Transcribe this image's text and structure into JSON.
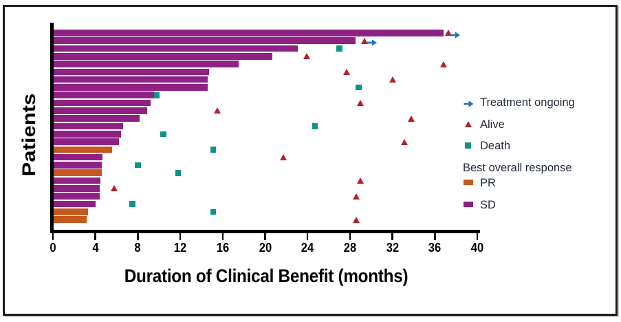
{
  "colors": {
    "sd_bar": "#8F2185",
    "pr_bar": "#C4581E",
    "alive_marker": "#B5202C",
    "death_marker": "#0E948C",
    "ongoing_marker": "#1C75BB",
    "axis": "#000000",
    "legend_text": "#232C38"
  },
  "chart_data": {
    "type": "bar",
    "variant": "swimmer-plot",
    "title": "",
    "xlabel": "Duration of Clinical Benefit (months)",
    "ylabel": "Patients",
    "xlim": [
      0,
      40
    ],
    "xticks": [
      0,
      4,
      8,
      12,
      16,
      20,
      24,
      28,
      32,
      36,
      40
    ],
    "grid": false,
    "legend_position": "right",
    "legend": [
      {
        "id": "ongoing",
        "label": "Treatment ongoing",
        "marker": "arrow-right-icon",
        "color": "#1C75BB"
      },
      {
        "id": "alive",
        "label": "Alive",
        "marker": "triangle-up-icon",
        "color": "#B5202C"
      },
      {
        "id": "death",
        "label": "Death",
        "marker": "square-icon",
        "color": "#0E948C"
      },
      {
        "id": "response-header",
        "label": "Best overall response",
        "marker": "none",
        "color": ""
      },
      {
        "id": "pr",
        "label": "PR",
        "marker": "swatch",
        "color": "#C4581E"
      },
      {
        "id": "sd",
        "label": "SD",
        "marker": "swatch",
        "color": "#8F2185"
      }
    ],
    "patients": [
      {
        "duration": 36.8,
        "response": "SD",
        "events": [
          {
            "type": "alive",
            "x": 37.3
          },
          {
            "type": "ongoing",
            "x": 37.9
          }
        ]
      },
      {
        "duration": 28.5,
        "response": "SD",
        "events": [
          {
            "type": "alive",
            "x": 29.4
          },
          {
            "type": "ongoing",
            "x": 30.1
          }
        ]
      },
      {
        "duration": 23.1,
        "response": "SD",
        "events": [
          {
            "type": "death",
            "x": 27.0
          }
        ]
      },
      {
        "duration": 20.7,
        "response": "SD",
        "events": [
          {
            "type": "alive",
            "x": 23.9
          }
        ]
      },
      {
        "duration": 17.5,
        "response": "SD",
        "events": [
          {
            "type": "alive",
            "x": 36.8
          }
        ]
      },
      {
        "duration": 14.7,
        "response": "SD",
        "events": [
          {
            "type": "alive",
            "x": 27.7
          }
        ]
      },
      {
        "duration": 14.6,
        "response": "SD",
        "events": [
          {
            "type": "alive",
            "x": 32.0
          }
        ]
      },
      {
        "duration": 14.6,
        "response": "SD",
        "events": [
          {
            "type": "death",
            "x": 28.8
          }
        ]
      },
      {
        "duration": 9.5,
        "response": "SD",
        "events": [
          {
            "type": "death",
            "x": 9.8
          }
        ]
      },
      {
        "duration": 9.2,
        "response": "SD",
        "events": [
          {
            "type": "alive",
            "x": 29.0
          }
        ]
      },
      {
        "duration": 8.9,
        "response": "SD",
        "events": [
          {
            "type": "alive",
            "x": 15.5
          }
        ]
      },
      {
        "duration": 8.2,
        "response": "SD",
        "events": [
          {
            "type": "alive",
            "x": 33.8
          }
        ]
      },
      {
        "duration": 6.6,
        "response": "SD",
        "events": [
          {
            "type": "death",
            "x": 24.7
          }
        ]
      },
      {
        "duration": 6.4,
        "response": "SD",
        "events": [
          {
            "type": "death",
            "x": 10.4
          }
        ]
      },
      {
        "duration": 6.2,
        "response": "SD",
        "events": [
          {
            "type": "alive",
            "x": 33.1
          }
        ]
      },
      {
        "duration": 5.6,
        "response": "PR",
        "events": [
          {
            "type": "death",
            "x": 15.1
          }
        ]
      },
      {
        "duration": 4.7,
        "response": "SD",
        "events": [
          {
            "type": "alive",
            "x": 21.7
          }
        ]
      },
      {
        "duration": 4.6,
        "response": "SD",
        "events": [
          {
            "type": "death",
            "x": 8.0
          }
        ]
      },
      {
        "duration": 4.6,
        "response": "PR",
        "events": [
          {
            "type": "death",
            "x": 11.8
          }
        ]
      },
      {
        "duration": 4.5,
        "response": "SD",
        "events": [
          {
            "type": "alive",
            "x": 29.0
          }
        ]
      },
      {
        "duration": 4.4,
        "response": "SD",
        "events": [
          {
            "type": "alive",
            "x": 5.8
          }
        ]
      },
      {
        "duration": 4.4,
        "response": "SD",
        "events": [
          {
            "type": "alive",
            "x": 28.6
          }
        ]
      },
      {
        "duration": 4.0,
        "response": "SD",
        "events": [
          {
            "type": "death",
            "x": 7.5
          }
        ]
      },
      {
        "duration": 3.3,
        "response": "PR",
        "events": [
          {
            "type": "death",
            "x": 15.1
          }
        ]
      },
      {
        "duration": 3.2,
        "response": "PR",
        "events": [
          {
            "type": "alive",
            "x": 28.6
          }
        ]
      }
    ]
  }
}
